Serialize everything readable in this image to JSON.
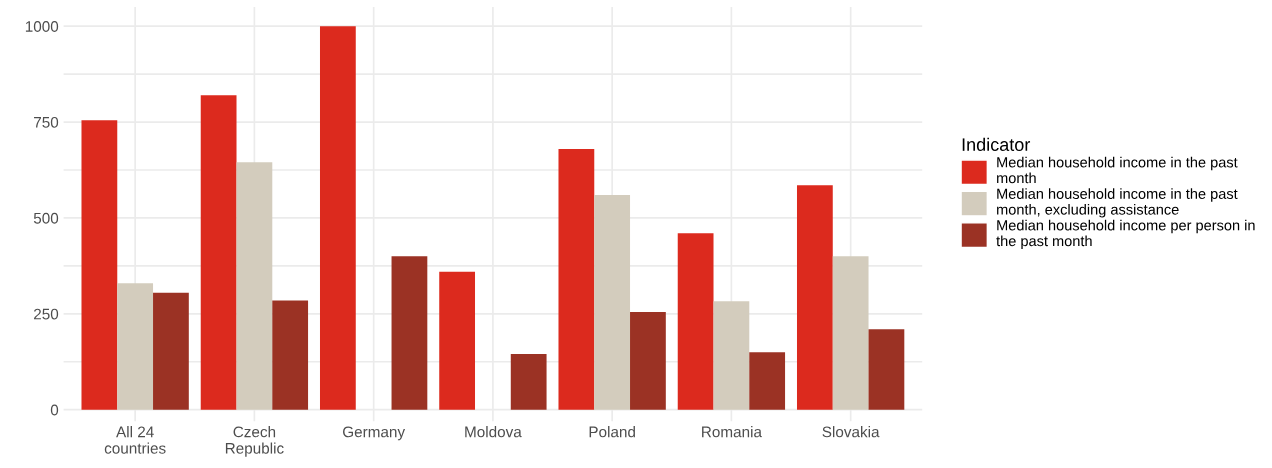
{
  "chart_data": {
    "type": "bar",
    "categories": [
      "All 24\ncountries",
      "Czech\nRepublic",
      "Germany",
      "Moldova",
      "Poland",
      "Romania",
      "Slovakia"
    ],
    "series": [
      {
        "name": "Median household income in the past\nmonth",
        "color": "#dc2a1e",
        "values": [
          755,
          820,
          1000,
          360,
          680,
          460,
          585
        ]
      },
      {
        "name": "Median household income in the past\nmonth, excluding assistance",
        "color": "#d3ccbd",
        "values": [
          330,
          645,
          null,
          null,
          560,
          283,
          400
        ]
      },
      {
        "name": "Median household income per person in\nthe past month",
        "color": "#9b3224",
        "values": [
          305,
          285,
          400,
          145,
          255,
          150,
          210
        ]
      }
    ],
    "legend_title": "Indicator",
    "ylim": [
      -30,
      1050
    ],
    "yticks": [
      0,
      {
        "value": 125,
        "label": null
      },
      250,
      {
        "value": 375,
        "label": null
      },
      500,
      {
        "value": 625,
        "label": null
      },
      750,
      {
        "value": 875,
        "label": null
      },
      1000
    ],
    "grid": true,
    "legend": "right"
  }
}
